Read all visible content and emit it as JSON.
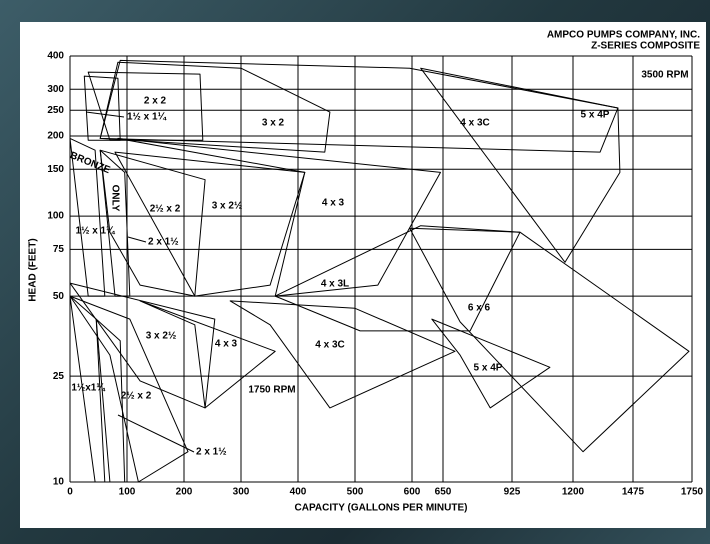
{
  "chart_data": {
    "type": "region",
    "title": "AMPCO PUMPS COMPANY, INC.",
    "subtitle": "Z-SERIES COMPOSITE",
    "xlabel": "CAPACITY (GALLONS PER MINUTE)",
    "ylabel": "HEAD (FEET)",
    "annotations": [
      "3500 RPM",
      "1750 RPM",
      "BRONZE",
      "ONLY"
    ],
    "xlim": [
      0,
      1750
    ],
    "ylim": [
      10,
      400
    ],
    "ylog": true,
    "grid": true,
    "color": "#000000",
    "xticks": [
      0,
      100,
      200,
      300,
      400,
      500,
      600,
      650,
      925,
      1200,
      1475,
      1750
    ],
    "yticks": [
      10,
      25,
      50,
      75,
      100,
      150,
      200,
      250,
      300,
      400
    ],
    "regions": [
      {
        "label": "1½ x 1¼",
        "x": [
          25,
          84,
          88,
          32
        ],
        "y": [
          336,
          330,
          193,
          193
        ]
      },
      {
        "label": "2 x 2",
        "x": [
          32,
          228,
          233,
          70
        ],
        "y": [
          348,
          342,
          193,
          193
        ]
      },
      {
        "label": "3 x 2",
        "x": [
          84,
          300,
          456,
          447,
          53
        ],
        "y": [
          379,
          360,
          246,
          174,
          196
        ]
      },
      {
        "label": "4 x 3C",
        "x": [
          88,
          596,
          1406,
          1324,
          53
        ],
        "y": [
          385,
          360,
          255,
          174,
          196
        ]
      },
      {
        "label": "5 x 4P",
        "x": [
          614,
          1406,
          1415,
          1164
        ],
        "y": [
          360,
          255,
          146,
          67
        ]
      },
      {
        "label": "2½ x 2",
        "x": [
          53,
          237,
          219,
          123,
          70
        ],
        "y": [
          177,
          137,
          50,
          55,
          87
        ]
      },
      {
        "label": "3 x 2½",
        "x": [
          79,
          412,
          351,
          219
        ],
        "y": [
          174,
          146,
          55,
          50
        ]
      },
      {
        "label": "4 x 3",
        "x": [
          84,
          646,
          540,
          360,
          412
        ],
        "y": [
          196,
          146,
          55,
          50,
          146
        ]
      },
      {
        "label": "4 x 3L",
        "x": [
          360,
          614,
          961,
          758,
          509
        ],
        "y": [
          50,
          92,
          87,
          37,
          37
        ]
      },
      {
        "label": "6 x 6",
        "x": [
          596,
          961,
          1736,
          1246,
          718
        ],
        "y": [
          90,
          87,
          31,
          13,
          40
        ]
      },
      {
        "label": "1½ x 1¼",
        "x": [
          0,
          44,
          61,
          32
        ],
        "y": [
          196,
          177,
          50,
          50
        ]
      },
      {
        "label": "2 x 1½",
        "x": [
          53,
          96,
          105,
          79
        ],
        "y": [
          177,
          146,
          50,
          50
        ]
      },
      {
        "label": "1½x1¼",
        "x": [
          0,
          46,
          61,
          44
        ],
        "y": [
          50,
          41,
          10,
          10
        ]
      },
      {
        "label": "2½ x 2",
        "x": [
          0,
          105,
          207,
          120,
          70
        ],
        "y": [
          50,
          41,
          13,
          10,
          30
        ]
      },
      {
        "label": "2 x 1½",
        "x": [
          46,
          88,
          96,
          70
        ],
        "y": [
          41,
          34,
          10,
          10
        ]
      },
      {
        "label": "3 x 2½",
        "x": [
          0,
          254,
          237,
          123
        ],
        "y": [
          56,
          41,
          19,
          24
        ]
      },
      {
        "label": "4 x 3",
        "x": [
          123,
          360,
          237,
          219
        ],
        "y": [
          48,
          31,
          19,
          39
        ]
      },
      {
        "label": "4 x 3C",
        "x": [
          281,
          500,
          698,
          456,
          351
        ],
        "y": [
          48,
          45,
          31,
          19,
          39
        ]
      },
      {
        "label": "5 x 4P",
        "x": [
          632,
          1096,
          838,
          718
        ],
        "y": [
          41,
          27,
          19,
          30
        ]
      }
    ]
  }
}
